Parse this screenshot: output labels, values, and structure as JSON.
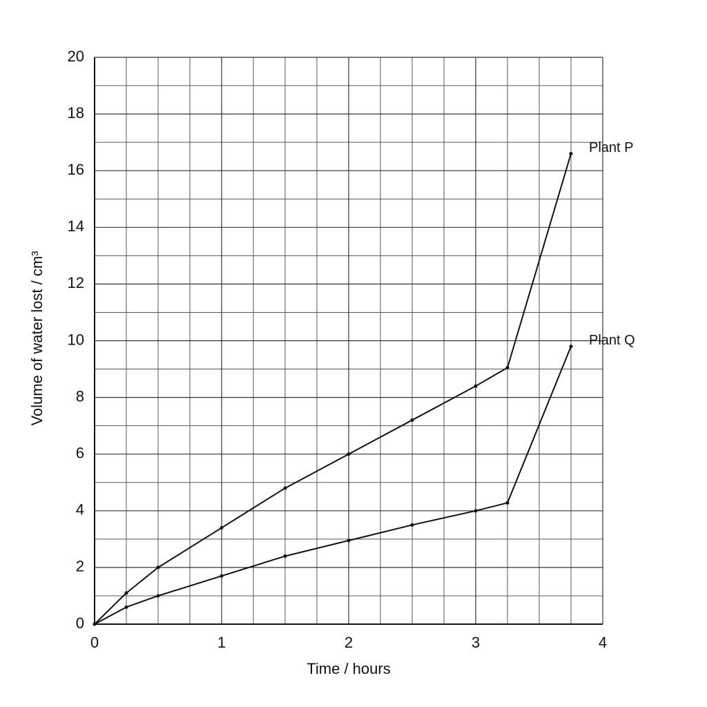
{
  "chart_data": {
    "type": "line",
    "xlabel": "Time / hours",
    "ylabel": "Volume of water lost / cm³",
    "xlim": [
      0,
      4
    ],
    "xticks": [
      0,
      1,
      2,
      3,
      4
    ],
    "ylim": [
      0,
      20
    ],
    "yticks": [
      0,
      2,
      4,
      6,
      8,
      10,
      12,
      14,
      16,
      18,
      20
    ],
    "grid": true,
    "series": [
      {
        "name": "Plant P",
        "color": "#111111",
        "x": [
          0,
          0.25,
          0.5,
          1,
          1.5,
          2,
          2.5,
          3,
          3.25,
          3.75
        ],
        "values": [
          0,
          1.1,
          2.0,
          3.4,
          4.8,
          6.0,
          7.2,
          8.4,
          9.05,
          16.6
        ]
      },
      {
        "name": "Plant Q",
        "color": "#111111",
        "x": [
          0,
          0.25,
          0.5,
          1,
          1.5,
          2,
          2.5,
          3,
          3.25,
          3.75
        ],
        "values": [
          0,
          0.6,
          1.0,
          1.7,
          2.4,
          2.95,
          3.5,
          4.0,
          4.28,
          9.8
        ]
      }
    ]
  }
}
